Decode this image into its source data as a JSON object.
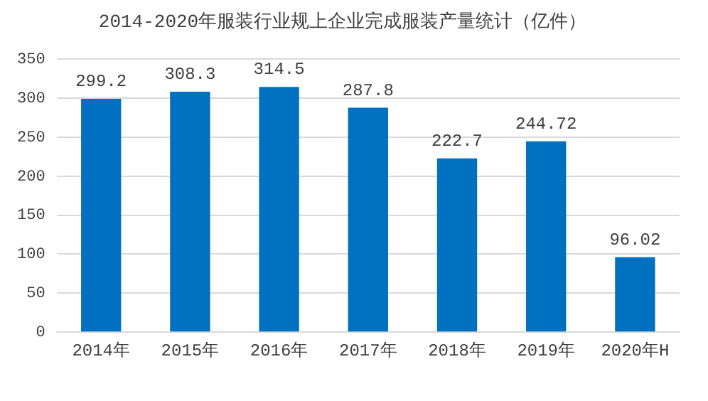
{
  "chart_data": {
    "type": "bar",
    "title": "2014-2020年服装行业规上企业完成服装产量统计（亿件）",
    "categories": [
      "2014年",
      "2015年",
      "2016年",
      "2017年",
      "2018年",
      "2019年",
      "2020年H"
    ],
    "values": [
      299.2,
      308.3,
      314.5,
      287.8,
      222.7,
      244.72,
      96.02
    ],
    "color": "#0070c0",
    "ylim": [
      0,
      350
    ],
    "yticks": [
      0,
      50,
      100,
      150,
      200,
      250,
      300,
      350
    ],
    "grid": "y",
    "data_labels": true
  }
}
